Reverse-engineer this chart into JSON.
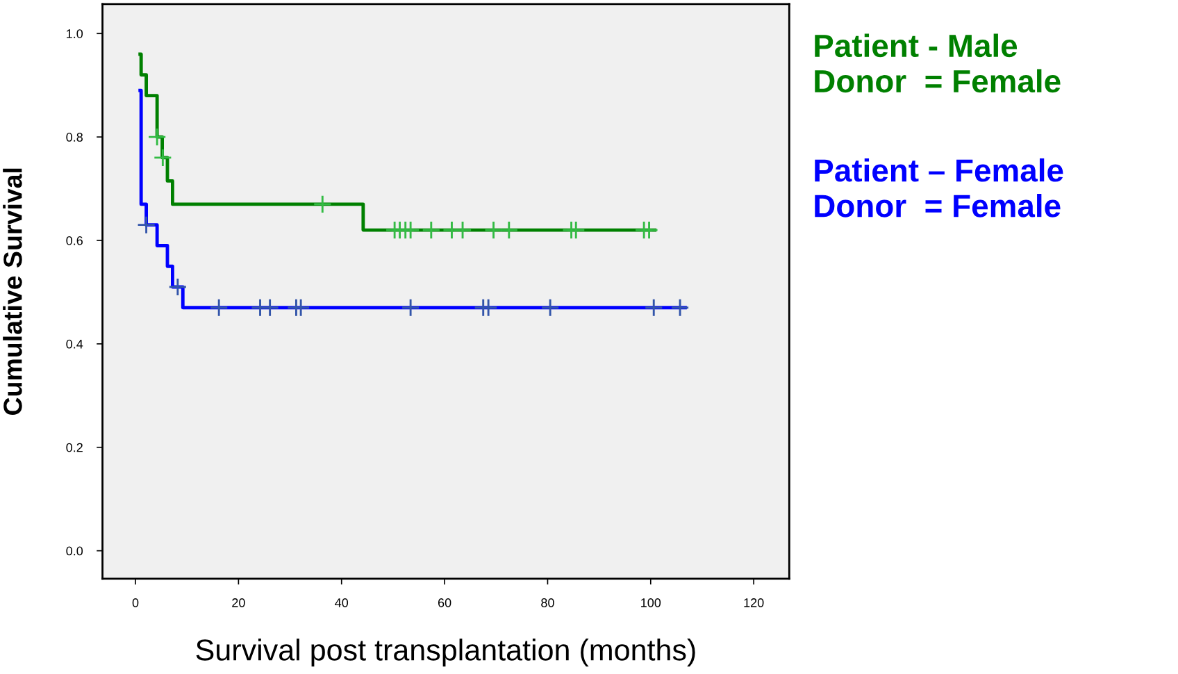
{
  "chart_data": {
    "type": "step",
    "xlabel": "Survival post transplantation (months)",
    "ylabel": "Cumulative Survival",
    "xlim": [
      -6.4,
      126.9
    ],
    "ylim": [
      -0.054,
      1.057
    ],
    "xticks": [
      0,
      20,
      40,
      60,
      80,
      100,
      120
    ],
    "yticks": [
      {
        "value": 0,
        "label": "0.0"
      },
      {
        "value": 0.2,
        "label": "0.2"
      },
      {
        "value": 0.4,
        "label": "0.4"
      },
      {
        "value": 0.6,
        "label": "0.6"
      },
      {
        "value": 0.8,
        "label": "0.8"
      },
      {
        "value": 1,
        "label": "1.0"
      }
    ],
    "grid": false,
    "legend": "right",
    "series": [
      {
        "name": "Patient - Male\nDonor  = Female",
        "color": "#008000",
        "x": [
          0.9,
          1.1,
          2.1,
          4.2,
          5.2,
          6.2,
          7.2,
          44.2,
          100.8
        ],
        "values": [
          0.96,
          0.92,
          0.88,
          0.8,
          0.76,
          0.715,
          0.67,
          0.62,
          0.62
        ]
      },
      {
        "name": "Patient – Female\nDonor  = Female",
        "color": "#0000ff",
        "x": [
          0.9,
          1.1,
          2.1,
          4.2,
          6.2,
          7.2,
          9.2,
          106.7
        ],
        "values": [
          0.89,
          0.67,
          0.63,
          0.59,
          0.55,
          0.51,
          0.47,
          0.47
        ]
      },
      {
        "type": "scatter",
        "marker": "cross",
        "color": "#33bb44",
        "x": [
          4.2,
          5.3,
          36.3,
          50.3,
          51.3,
          52.4,
          53.4,
          57.4,
          61.4,
          63.5,
          69.5,
          72.5,
          84.6,
          85.5,
          98.7,
          99.7
        ],
        "values": [
          0.8,
          0.76,
          0.67,
          0.62,
          0.62,
          0.62,
          0.62,
          0.62,
          0.62,
          0.62,
          0.62,
          0.62,
          0.62,
          0.62,
          0.62,
          0.62
        ]
      },
      {
        "type": "scatter",
        "marker": "cross",
        "color": "#3355aa",
        "x": [
          2.1,
          8.2,
          16.2,
          24.2,
          26.1,
          31.2,
          32.1,
          53.4,
          67.5,
          68.5,
          80.5,
          100.6,
          105.7
        ],
        "values": [
          0.63,
          0.51,
          0.47,
          0.47,
          0.47,
          0.47,
          0.47,
          0.47,
          0.47,
          0.47,
          0.47,
          0.47,
          0.47
        ]
      }
    ]
  }
}
